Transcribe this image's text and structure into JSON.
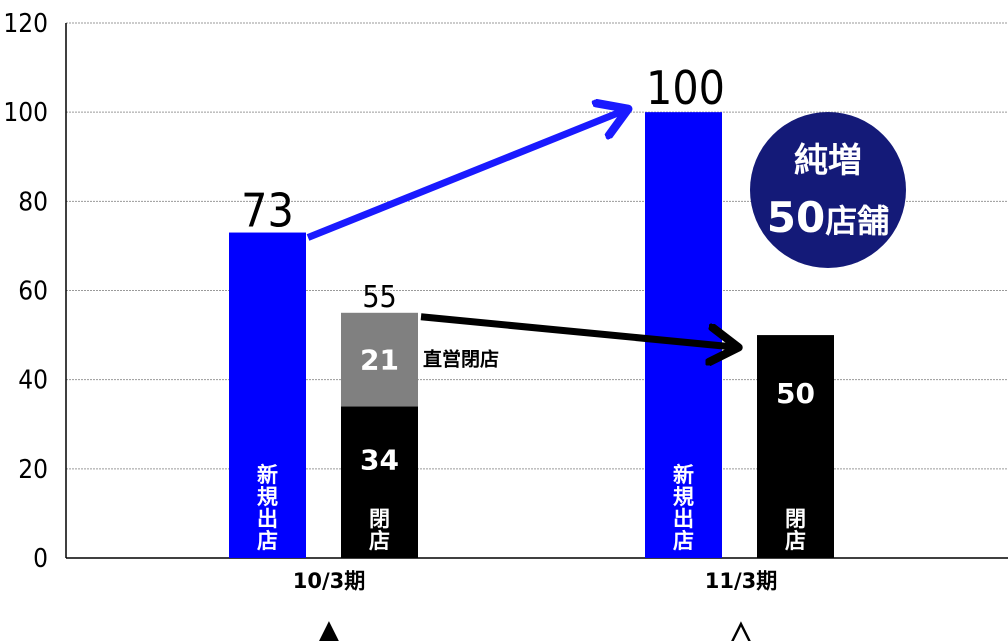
{
  "chart_data": {
    "type": "bar",
    "ylim": [
      0,
      120
    ],
    "yticks": [
      "0",
      "20",
      "40",
      "60",
      "80",
      "100",
      "120"
    ],
    "grid": true,
    "categories": [
      "10/3期",
      "11/3期"
    ],
    "series": [
      {
        "name": "新規出店",
        "color": "#0000ff",
        "values": [
          73,
          100
        ],
        "labels": [
          "73",
          "100"
        ]
      },
      {
        "name": "閉店",
        "color": "#000000",
        "values": [
          34,
          50
        ],
        "labels": [
          "34",
          "50"
        ]
      },
      {
        "name": "直営閉店",
        "color": "#808080",
        "values": [
          21,
          null
        ],
        "labels": [
          "21",
          ""
        ]
      }
    ],
    "closure_totals": [
      "55",
      ""
    ],
    "closure_bar_label": "閉店",
    "new_bar_label": "新規出店",
    "annotation_direct_closure": "直営閉店",
    "badge": {
      "line1": "純増",
      "line2_number": "50",
      "line2_unit": "店舗",
      "color": "#141a78"
    },
    "markers": [
      "▲",
      "△"
    ]
  }
}
